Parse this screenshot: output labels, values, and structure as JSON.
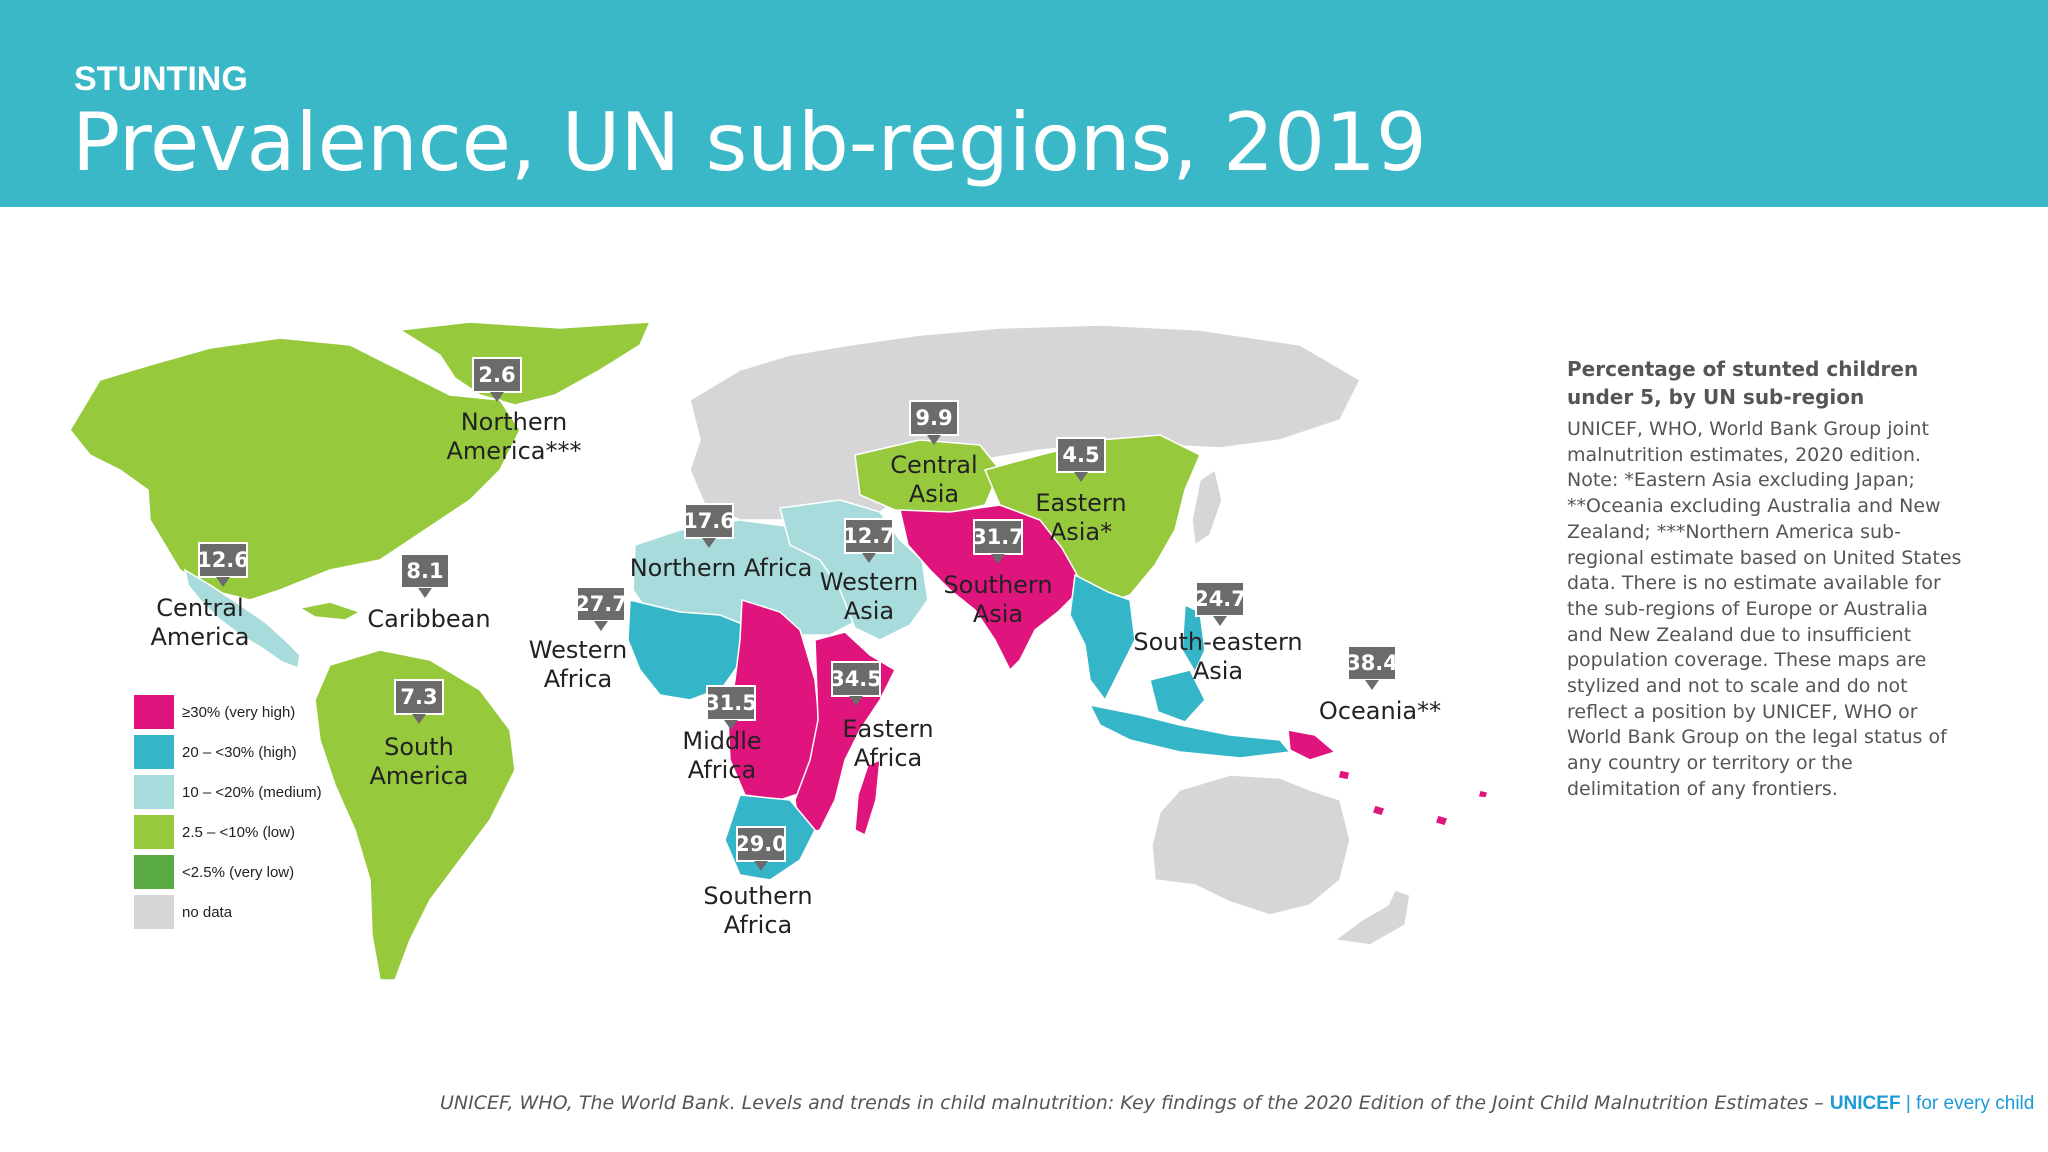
{
  "header": {
    "kicker": "STUNTING",
    "title": "Prevalence, UN sub-regions, 2019"
  },
  "colors": {
    "header_bg": "#3bb8c8",
    "very_high": "#e0147d",
    "high": "#34b6c8",
    "medium": "#a8dcdc",
    "low": "#97c93d",
    "very_low": "#5aab45",
    "no_data": "#d6d6d9",
    "value_box": "#6b6b6b",
    "unicef_blue": "#1c9ad6"
  },
  "legend": [
    {
      "label": "≥30% (very high)",
      "color": "#e0147d"
    },
    {
      "label": "20 – <30% (high)",
      "color": "#34b6c8"
    },
    {
      "label": "10 – <20% (medium)",
      "color": "#a8dcdc"
    },
    {
      "label": "2.5 – <10% (low)",
      "color": "#97c93d"
    },
    {
      "label": "<2.5% (very low)",
      "color": "#5aab45"
    },
    {
      "label": "no data",
      "color": "#d6d6d9"
    }
  ],
  "regions": [
    {
      "name": "Northern America***",
      "lines": [
        "Northern",
        "America***"
      ],
      "value": "2.6",
      "category": "low"
    },
    {
      "name": "Central America",
      "lines": [
        "Central",
        "America"
      ],
      "value": "12.6",
      "category": "medium"
    },
    {
      "name": "Caribbean",
      "lines": [
        "Caribbean"
      ],
      "value": "8.1",
      "category": "low"
    },
    {
      "name": "South America",
      "lines": [
        "South",
        "America"
      ],
      "value": "7.3",
      "category": "low"
    },
    {
      "name": "Northern Africa",
      "lines": [
        "Northern Africa"
      ],
      "value": "17.6",
      "category": "medium"
    },
    {
      "name": "Western Africa",
      "lines": [
        "Western",
        "Africa"
      ],
      "value": "27.7",
      "category": "high"
    },
    {
      "name": "Middle Africa",
      "lines": [
        "Middle",
        "Africa"
      ],
      "value": "31.5",
      "category": "very_high"
    },
    {
      "name": "Eastern Africa",
      "lines": [
        "Eastern",
        "Africa"
      ],
      "value": "34.5",
      "category": "very_high"
    },
    {
      "name": "Southern Africa",
      "lines": [
        "Southern",
        "Africa"
      ],
      "value": "29.0",
      "category": "high"
    },
    {
      "name": "Western Asia",
      "lines": [
        "Western",
        "Asia"
      ],
      "value": "12.7",
      "category": "medium"
    },
    {
      "name": "Central Asia",
      "lines": [
        "Central",
        "Asia"
      ],
      "value": "9.9",
      "category": "low"
    },
    {
      "name": "Southern Asia",
      "lines": [
        "Southern",
        "Asia"
      ],
      "value": "31.7",
      "category": "very_high"
    },
    {
      "name": "Eastern Asia*",
      "lines": [
        "Eastern",
        "Asia*"
      ],
      "value": "4.5",
      "category": "low"
    },
    {
      "name": "South-eastern Asia",
      "lines": [
        "South-eastern",
        "Asia"
      ],
      "value": "24.7",
      "category": "high"
    },
    {
      "name": "Oceania**",
      "lines": [
        "Oceania**"
      ],
      "value": "38.4",
      "category": "very_high"
    }
  ],
  "side_panel": {
    "title": "Percentage of stunted children under 5, by UN sub-region",
    "body": "UNICEF, WHO, World Bank Group joint malnutrition estimates, 2020 edition. Note: *Eastern Asia excluding Japan; **Oceania excluding Australia and New Zealand; ***Northern America sub-regional estimate based on United States data. There is no estimate available for the sub-regions of Europe or Australia and New Zealand due to insufficient population coverage. These maps are stylized and not to scale and do not reflect a position by UNICEF, WHO or World Bank Group on the legal status of any country or territory or the delimitation of any frontiers."
  },
  "footer": {
    "citation": "UNICEF, WHO, The World Bank. Levels and trends in child malnutrition: Key findings of the 2020 Edition of the Joint Child Malnutrition Estimates – ",
    "brand": "UNICEF",
    "tagline": " | for every child"
  }
}
